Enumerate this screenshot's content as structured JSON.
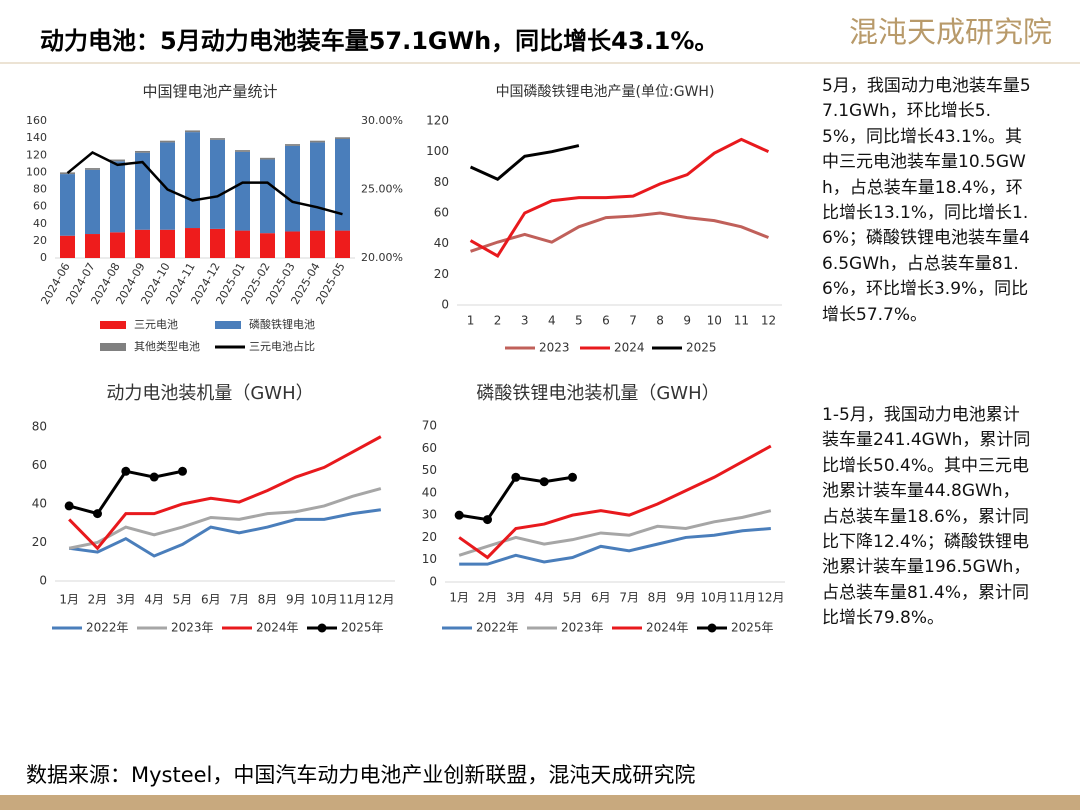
{
  "title": "动力电池：5月动力电池装车量57.1GWh，同比增长43.1%。",
  "logo": "混沌天成研究院",
  "notes": [
    "5月，我国动力电池装车量57.1GWh，环比增长5.5%，同比增长43.1%。其中三元电池装车量10.5GWh，占总装车量18.4%，环比增长13.1%，同比增长1.6%；磷酸铁锂电池装车量46.5GWh，占总装车量81.6%，环比增长3.9%，同比增长57.7%。",
    "1-5月，我国动力电池累计装车量241.4GWh，累计同比增长50.4%。其中三元电池累计装车量44.8GWh，占总装车量18.6%，累计同比下降12.4%；磷酸铁锂电池累计装车量196.5GWh，占总装车量81.4%，累计同比增长79.8%。"
  ],
  "source": "数据来源：Mysteel，中国汽车动力电池产业创新联盟，混沌天成研究院",
  "chart_data": [
    {
      "type": "bar",
      "stacked": true,
      "title": "中国锂电池产量统计",
      "categories": [
        "2024-06",
        "2024-07",
        "2024-08",
        "2024-09",
        "2024-10",
        "2024-11",
        "2024-12",
        "2025-01",
        "2025-02",
        "2025-03",
        "2025-04",
        "2025-05"
      ],
      "series": [
        {
          "name": "三元电池",
          "color": "#ee1c1c",
          "values": [
            26,
            28,
            30,
            33,
            33,
            35,
            34,
            32,
            29,
            31,
            32,
            32
          ]
        },
        {
          "name": "磷酸铁锂电池",
          "color": "#4a7ebb",
          "values": [
            72,
            75,
            83,
            90,
            102,
            112,
            104,
            92,
            86,
            100,
            103,
            107
          ]
        },
        {
          "name": "其他类型电池",
          "color": "#808080",
          "values": [
            2,
            2,
            2,
            2,
            2,
            2,
            2,
            2,
            2,
            2,
            2,
            2
          ]
        },
        {
          "name": "三元电池占比",
          "color": "#000000",
          "type": "line",
          "axis": "y2",
          "values": [
            26.2,
            27.7,
            26.8,
            27.0,
            25.0,
            24.2,
            24.5,
            25.5,
            25.5,
            24.1,
            23.7,
            23.2
          ]
        }
      ],
      "ylim": [
        0,
        160
      ],
      "yticks": [
        0,
        20,
        40,
        60,
        80,
        100,
        120,
        140,
        160
      ],
      "y2lim": [
        20,
        30
      ],
      "y2ticks": [
        {
          "value": 20,
          "label": "20.00%"
        },
        {
          "value": 25,
          "label": "25.00%"
        },
        {
          "value": 30,
          "label": "30.00%"
        }
      ]
    },
    {
      "type": "line",
      "title": "中国磷酸铁锂电池产量(单位:GWH)",
      "categories": [
        "1",
        "2",
        "3",
        "4",
        "5",
        "6",
        "7",
        "8",
        "9",
        "10",
        "11",
        "12"
      ],
      "series": [
        {
          "name": "2023",
          "color": "#c0605a",
          "values": [
            35,
            41,
            46,
            41,
            51,
            57,
            58,
            60,
            57,
            55,
            51,
            44
          ]
        },
        {
          "name": "2024",
          "color": "#e8191d",
          "values": [
            42,
            32,
            60,
            68,
            70,
            70,
            71,
            79,
            85,
            99,
            108,
            100
          ]
        },
        {
          "name": "2025",
          "color": "#000000",
          "values": [
            90,
            82,
            97,
            100,
            104,
            null,
            null,
            null,
            null,
            null,
            null,
            null
          ]
        }
      ],
      "ylim": [
        0,
        120
      ],
      "yticks": [
        0,
        20,
        40,
        60,
        80,
        100,
        120
      ]
    },
    {
      "type": "line",
      "title": "动力电池装机量（GWH）",
      "categories": [
        "1月",
        "2月",
        "3月",
        "4月",
        "5月",
        "6月",
        "7月",
        "8月",
        "9月",
        "10月",
        "11月",
        "12月"
      ],
      "series": [
        {
          "name": "2022年",
          "color": "#4a7ebb",
          "values": [
            17,
            15,
            22,
            13,
            19,
            28,
            25,
            28,
            32,
            32,
            35,
            37
          ]
        },
        {
          "name": "2023年",
          "color": "#a6a6a6",
          "values": [
            17,
            20,
            28,
            24,
            28,
            33,
            32,
            35,
            36,
            39,
            44,
            48
          ]
        },
        {
          "name": "2024年",
          "color": "#e8191d",
          "values": [
            32,
            17,
            35,
            35,
            40,
            43,
            41,
            47,
            54,
            59,
            67,
            75
          ]
        },
        {
          "name": "2025年",
          "color": "#000000",
          "markers": true,
          "values": [
            39,
            35,
            57,
            54,
            57,
            null,
            null,
            null,
            null,
            null,
            null,
            null
          ]
        }
      ],
      "ylim": [
        0,
        80
      ],
      "yticks": [
        0,
        20,
        40,
        60,
        80
      ]
    },
    {
      "type": "line",
      "title": "磷酸铁锂电池装机量（GWH）",
      "categories": [
        "1月",
        "2月",
        "3月",
        "4月",
        "5月",
        "6月",
        "7月",
        "8月",
        "9月",
        "10月",
        "11月",
        "12月"
      ],
      "series": [
        {
          "name": "2022年",
          "color": "#4a7ebb",
          "values": [
            8,
            8,
            12,
            9,
            11,
            16,
            14,
            17,
            20,
            21,
            23,
            24
          ]
        },
        {
          "name": "2023年",
          "color": "#a6a6a6",
          "values": [
            12,
            16,
            20,
            17,
            19,
            22,
            21,
            25,
            24,
            27,
            29,
            32
          ]
        },
        {
          "name": "2024年",
          "color": "#e8191d",
          "values": [
            20,
            11,
            24,
            26,
            30,
            32,
            30,
            35,
            41,
            47,
            54,
            61
          ]
        },
        {
          "name": "2025年",
          "color": "#000000",
          "markers": true,
          "values": [
            30,
            28,
            47,
            45,
            47,
            null,
            null,
            null,
            null,
            null,
            null,
            null
          ]
        }
      ],
      "ylim": [
        0,
        70
      ],
      "yticks": [
        0,
        10,
        20,
        30,
        40,
        50,
        60,
        70
      ]
    }
  ]
}
